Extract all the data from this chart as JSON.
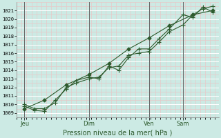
{
  "title": "Pression niveau de la mer( hPa )",
  "bg_color": "#cceae4",
  "plot_bg_color": "#cceae4",
  "grid_major_color": "#ffffff",
  "grid_minor_color": "#e8c8c8",
  "line_color": "#2d5a2d",
  "vline_color": "#666666",
  "ylim": [
    1008.5,
    1022.0
  ],
  "ytick_min": 1009,
  "ytick_max": 1021,
  "xtick_labels": [
    "Jeu",
    "Dim",
    "Ven",
    "Sam"
  ],
  "xtick_positions": [
    0.04,
    0.365,
    0.668,
    0.838
  ],
  "vline_positions": [
    0.04,
    0.365,
    0.668,
    0.838
  ],
  "series1_x": [
    0.04,
    0.09,
    0.14,
    0.195,
    0.25,
    0.3,
    0.365,
    0.415,
    0.465,
    0.515,
    0.565,
    0.615,
    0.668,
    0.718,
    0.768,
    0.838,
    0.888,
    0.938,
    0.988
  ],
  "series1_y": [
    1010.0,
    1009.5,
    1009.5,
    1010.2,
    1012.0,
    1012.5,
    1013.0,
    1013.2,
    1014.3,
    1014.5,
    1015.8,
    1016.0,
    1016.2,
    1017.3,
    1018.5,
    1019.3,
    1020.5,
    1021.2,
    1021.5
  ],
  "series2_x": [
    0.04,
    0.09,
    0.14,
    0.195,
    0.25,
    0.3,
    0.365,
    0.415,
    0.465,
    0.515,
    0.565,
    0.615,
    0.668,
    0.718,
    0.768,
    0.838,
    0.888,
    0.938,
    0.988
  ],
  "series2_y": [
    1009.8,
    1009.3,
    1009.2,
    1010.5,
    1011.8,
    1012.8,
    1013.2,
    1013.0,
    1014.5,
    1014.0,
    1015.5,
    1016.5,
    1016.5,
    1017.7,
    1018.8,
    1020.5,
    1020.2,
    1021.4,
    1020.8
  ],
  "series3_x": [
    0.04,
    0.14,
    0.25,
    0.365,
    0.465,
    0.565,
    0.668,
    0.768,
    0.888,
    0.988
  ],
  "series3_y": [
    1009.5,
    1010.5,
    1012.3,
    1013.5,
    1014.8,
    1016.5,
    1017.8,
    1019.2,
    1020.5,
    1021.0
  ],
  "marker": "P",
  "markersize": 2.5,
  "linewidth": 0.8
}
